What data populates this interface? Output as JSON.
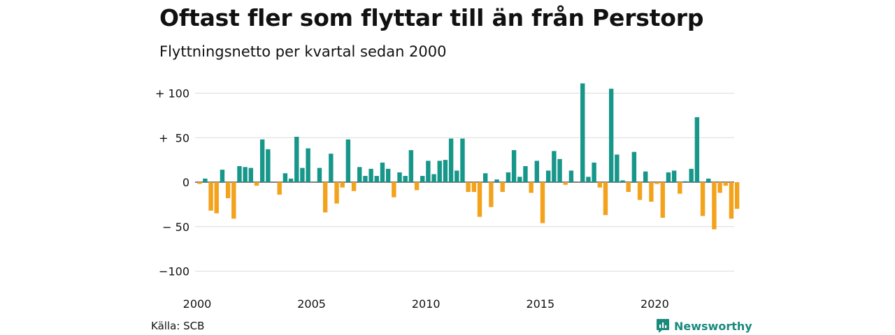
{
  "header": {
    "title": "Oftast fler som flyttar till än från Perstorp",
    "subtitle": "Flyttningsnetto per kvartal sedan 2000"
  },
  "footer": {
    "source": "Källa: SCB",
    "brand": "Newsworthy",
    "brand_icon": "newsworthy-logo-icon"
  },
  "colors": {
    "positive": "#17968a",
    "negative": "#f3a21c",
    "grid": "#dcdcdc",
    "brand": "#1a8a7d"
  },
  "chart_data": {
    "type": "bar",
    "title": "Oftast fler som flyttar till än från Perstorp",
    "subtitle": "Flyttningsnetto per kvartal sedan 2000",
    "xlabel": "",
    "ylabel": "",
    "ylim": [
      -100,
      100
    ],
    "yticks": [
      100,
      50,
      0,
      -50,
      -100
    ],
    "ytick_labels": [
      "+ 100",
      "+  50",
      "0",
      "− 50",
      "−100"
    ],
    "xticks": [
      2000,
      2005,
      2010,
      2015,
      2020
    ],
    "xtick_labels": [
      "2000",
      "2005",
      "2010",
      "2015",
      "2020"
    ],
    "grid": true,
    "legend": "none",
    "start_year": 2000,
    "period": "quarter",
    "values": [
      -2,
      4,
      -32,
      -35,
      14,
      -18,
      -41,
      18,
      17,
      16,
      -4,
      48,
      37,
      0,
      -14,
      10,
      4,
      51,
      16,
      38,
      0,
      16,
      -34,
      32,
      -24,
      -6,
      48,
      -10,
      17,
      7,
      15,
      7,
      22,
      15,
      -17,
      11,
      7,
      36,
      -9,
      7,
      24,
      9,
      24,
      25,
      49,
      13,
      49,
      -11,
      -11,
      -39,
      10,
      -28,
      3,
      -11,
      11,
      36,
      6,
      18,
      -12,
      24,
      -46,
      13,
      35,
      26,
      -3,
      13,
      0,
      111,
      6,
      22,
      -6,
      -37,
      105,
      31,
      2,
      -11,
      34,
      -20,
      12,
      -22,
      -2,
      -40,
      11,
      13,
      -13,
      1,
      15,
      73,
      -38,
      4,
      -53,
      -12,
      -4,
      -41,
      -30
    ]
  }
}
